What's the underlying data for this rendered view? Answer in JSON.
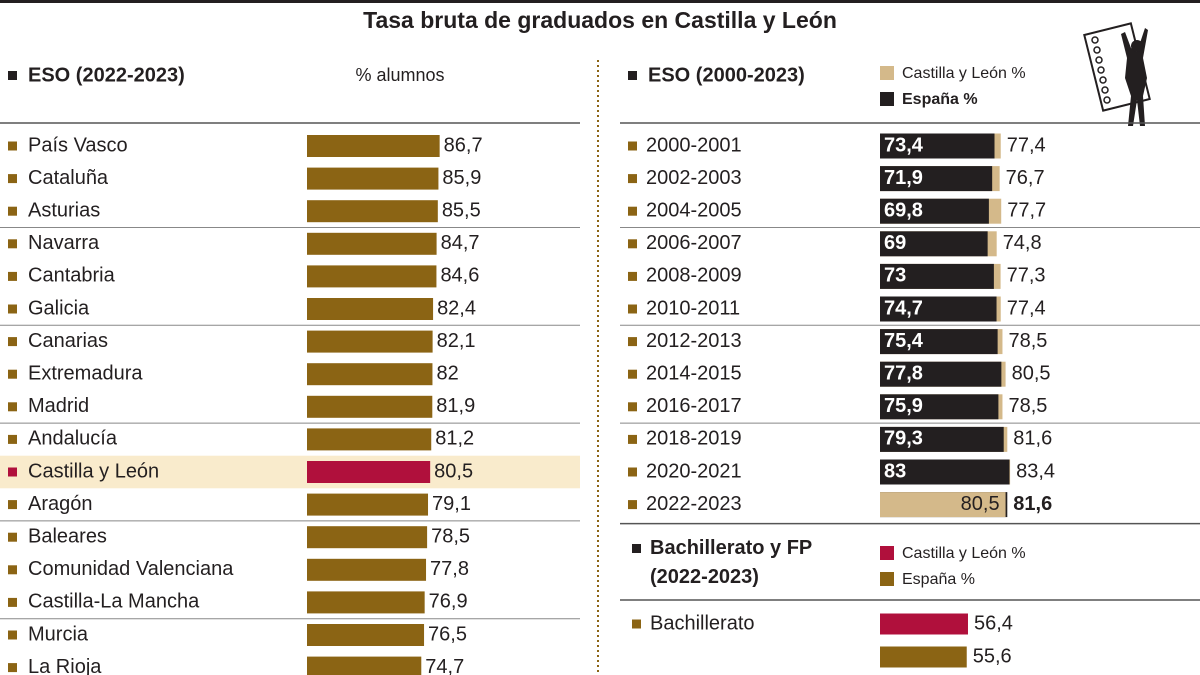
{
  "title": "Tasa bruta de graduados en Castilla y León",
  "chart_data": [
    {
      "type": "bar",
      "title": "ESO (2022-2023)",
      "subtitle": "% alumnos",
      "categories": [
        "País Vasco",
        "Cataluña",
        "Asturias",
        "Navarra",
        "Cantabria",
        "Galicia",
        "Canarias",
        "Extremadura",
        "Madrid",
        "Andalucía",
        "Castilla y León",
        "Aragón",
        "Baleares",
        "Comunidad Valenciana",
        "Castilla-La Mancha",
        "Murcia",
        "La Rioja"
      ],
      "values": [
        86.7,
        85.9,
        85.5,
        84.7,
        84.6,
        82.4,
        82.1,
        82,
        81.9,
        81.2,
        80.5,
        79.1,
        78.5,
        77.8,
        76.9,
        76.5,
        74.7
      ],
      "value_labels": [
        "86,7",
        "85,9",
        "85,5",
        "84,7",
        "84,6",
        "82,4",
        "82,1",
        "82",
        "81,9",
        "81,2",
        "80,5",
        "79,1",
        "78,5",
        "77,8",
        "76,9",
        "76,5",
        "74,7"
      ],
      "color": "#8b6414",
      "colors": [
        "#8b6414",
        "#8b6414",
        "#8b6414",
        "#8b6414",
        "#8b6414",
        "#8b6414",
        "#8b6414",
        "#8b6414",
        "#8b6414",
        "#8b6414",
        "#b0103c",
        "#8b6414",
        "#8b6414",
        "#8b6414",
        "#8b6414",
        "#8b6414",
        "#8b6414"
      ],
      "xlim": [
        0,
        100
      ]
    },
    {
      "type": "overlap_bar",
      "title": "ESO (2000-2023)",
      "categories": [
        "2000-2001",
        "2002-2003",
        "2004-2005",
        "2006-2007",
        "2008-2009",
        "2010-2011",
        "2012-2013",
        "2014-2015",
        "2016-2017",
        "2018-2019",
        "2020-2021",
        "2022-2023"
      ],
      "series": [
        {
          "name": "Castilla y León %",
          "color": "#d4b98a",
          "values": [
            77.4,
            76.7,
            77.7,
            74.8,
            77.3,
            77.4,
            78.5,
            80.5,
            78.5,
            81.6,
            83.4,
            80.5
          ],
          "value_labels": [
            "77,4",
            "76,7",
            "77,7",
            "74,8",
            "77,3",
            "77,4",
            "78,5",
            "80,5",
            "78,5",
            "81,6",
            "83,4",
            "80,5"
          ]
        },
        {
          "name": "España %",
          "color": "#231f20",
          "values": [
            73.4,
            71.9,
            69.8,
            69,
            73,
            74.7,
            75.4,
            77.8,
            75.9,
            79.3,
            83,
            81.6
          ],
          "value_labels": [
            "73,4",
            "71,9",
            "69,8",
            "69",
            "73",
            "74,7",
            "75,4",
            "77,8",
            "75,9",
            "79,3",
            "83",
            "81,6"
          ]
        }
      ],
      "xlim": [
        0,
        100
      ]
    },
    {
      "type": "grouped_bar",
      "title": "Bachillerato y FP (2022-2023)",
      "categories": [
        "Bachillerato"
      ],
      "series": [
        {
          "name": "Castilla y León %",
          "color": "#b0103c",
          "values": [
            56.4
          ],
          "value_labels": [
            "56,4"
          ]
        },
        {
          "name": "España %",
          "color": "#8b6414",
          "values": [
            55.6
          ],
          "value_labels": [
            "55,6"
          ]
        }
      ],
      "xlim": [
        0,
        100
      ]
    }
  ]
}
